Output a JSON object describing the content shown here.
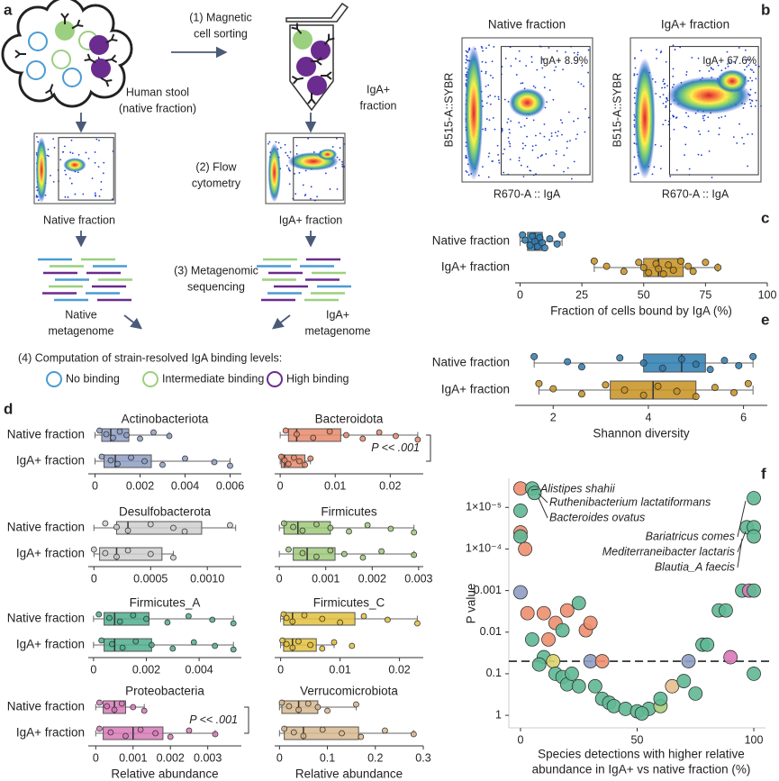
{
  "panel_labels": [
    "a",
    "b",
    "c",
    "d",
    "e",
    "f"
  ],
  "panel_a": {
    "step1": [
      "(1) Magnetic",
      "cell sorting"
    ],
    "stool": [
      "Human stool",
      "(native fraction)"
    ],
    "iga_tube": [
      "IgA+",
      "fraction"
    ],
    "step2": [
      "(2) Flow",
      "cytometry"
    ],
    "native_plot": "Native fraction",
    "iga_plot": "IgA+ fraction",
    "step3": [
      "(3) Metagenomic",
      "sequencing"
    ],
    "native_meta": [
      "Native",
      "metagenome"
    ],
    "iga_meta": [
      "IgA+",
      "metagenome"
    ],
    "step4": "(4) Computation of strain-resolved IgA binding levels:",
    "legend": [
      {
        "label": "No binding",
        "color": "#4a9bd4"
      },
      {
        "label": "Intermediate binding",
        "color": "#9ccf7f"
      },
      {
        "label": "High binding",
        "color": "#6a2c8e"
      }
    ]
  },
  "panel_b": {
    "plots": [
      {
        "title": "Native fraction",
        "gate": "IgA+ 8.9%"
      },
      {
        "title": "IgA+ fraction",
        "gate": "IgA+ 67.6%"
      }
    ],
    "ylabel": "B515-A::SYBR",
    "xlabel": "R670-A :: IgA"
  },
  "chart_data": [
    {
      "type": "box",
      "categories": [
        "Native fraction",
        "IgA+ fraction"
      ],
      "colors": [
        "#2b7bb0",
        "#c8901f"
      ],
      "boxes": [
        [
          0,
          3,
          6,
          9,
          17
        ],
        [
          30,
          50,
          56,
          66,
          80
        ]
      ],
      "points": [
        [
          1,
          2,
          4,
          5,
          6,
          7,
          8,
          9,
          10,
          12,
          15,
          17
        ],
        [
          30,
          35,
          42,
          48,
          50,
          52,
          55,
          56,
          58,
          60,
          62,
          65,
          68,
          70,
          75,
          80
        ]
      ],
      "xlim": [
        -2,
        100
      ],
      "xticks": [
        0,
        25,
        50,
        75,
        100
      ],
      "xlabel": "Fraction of cells bound by IgA (%)"
    },
    {
      "type": "box",
      "categories": [
        "Native fraction",
        "IgA+ fraction"
      ],
      "colors": [
        "#2b7bb0",
        "#c8901f"
      ],
      "boxes": [
        [
          1.6,
          3.9,
          4.7,
          5.2,
          6.2
        ],
        [
          1.7,
          3.2,
          4.1,
          5.0,
          6.2
        ]
      ],
      "points": [
        [
          1.6,
          2.3,
          2.6,
          3.4,
          3.9,
          4.3,
          4.7,
          5.0,
          5.3,
          5.6,
          5.9,
          6.2
        ],
        [
          1.7,
          2.0,
          2.6,
          3.1,
          3.5,
          3.9,
          4.2,
          4.6,
          5.0,
          5.4,
          5.8,
          6.1
        ]
      ],
      "xlim": [
        1.2,
        6.5
      ],
      "xticks": [
        2,
        4,
        6
      ],
      "xlabel": "Shannon diversity"
    },
    {
      "type": "box",
      "title": "Actinobacteriota",
      "categories": [
        "Native fraction",
        "IgA+ fraction"
      ],
      "colors": [
        "#8e9ec4",
        "#8e9ec4"
      ],
      "boxes": [
        [
          0,
          0.0003,
          0.0007,
          0.0015,
          0.0033
        ],
        [
          0,
          0.0004,
          0.0009,
          0.0025,
          0.006
        ]
      ],
      "points": [
        [
          0.0002,
          0.0005,
          0.0008,
          0.0011,
          0.0014,
          0.002,
          0.0026,
          0.0033
        ],
        [
          0.0003,
          0.0007,
          0.001,
          0.0016,
          0.0022,
          0.003,
          0.004,
          0.0053,
          0.006
        ]
      ],
      "xlim": [
        -0.0003,
        0.0065
      ],
      "xticks": [
        0,
        0.002,
        0.004,
        0.006
      ]
    },
    {
      "type": "box",
      "title": "Bacteroidota",
      "colors": [
        "#e8896b",
        "#e8896b"
      ],
      "boxes": [
        [
          0,
          0.0015,
          0.003,
          0.011,
          0.025
        ],
        [
          0,
          0.0002,
          0.0008,
          0.0045,
          0.0055
        ]
      ],
      "points": [
        [
          0.001,
          0.003,
          0.006,
          0.009,
          0.012,
          0.015,
          0.018,
          0.021,
          0.025
        ],
        [
          0.0002,
          0.0008,
          0.0015,
          0.0025,
          0.0035,
          0.0045,
          0.0055
        ]
      ],
      "xlim": [
        -0.001,
        0.026
      ],
      "xticks": [
        0,
        0.01,
        0.02
      ],
      "annotation": "P << .001"
    },
    {
      "type": "box",
      "title": "Desulfobacterota",
      "categories": [
        "Native fraction",
        "IgA+ fraction"
      ],
      "colors": [
        "#cfcfcf",
        "#cfcfcf"
      ],
      "boxes": [
        [
          0,
          0.0002,
          0.0003,
          0.00095,
          0.00125
        ],
        [
          0,
          5e-05,
          0.0002,
          0.0006,
          0.0007
        ]
      ],
      "points": [
        [
          0.0001,
          0.0002,
          0.0003,
          0.0005,
          0.0007,
          0.0008,
          0.0012
        ],
        [
          0,
          0.0001,
          0.0002,
          0.0003,
          0.0005,
          0.0007
        ]
      ],
      "xlim": [
        -5e-05,
        0.0013
      ],
      "xticks": [
        0,
        0.0005,
        {
          "value": 0.001,
          "label": "0.0010"
        }
      ]
    },
    {
      "type": "box",
      "title": "Firmicutes",
      "colors": [
        "#9fc97a",
        "#9fc97a"
      ],
      "boxes": [
        [
          0,
          0.0001,
          0.0004,
          0.0011,
          0.0029
        ],
        [
          0,
          0.0003,
          0.0006,
          0.0012,
          0.0029
        ]
      ],
      "points": [
        [
          0.0001,
          0.0003,
          0.0005,
          0.0008,
          0.0011,
          0.0015,
          0.0019,
          0.0024,
          0.0029
        ],
        [
          0.0002,
          0.0005,
          0.0008,
          0.0011,
          0.0014,
          0.0018,
          0.0022,
          0.0029
        ]
      ],
      "xlim": [
        -0.0001,
        0.0031
      ],
      "xticks": [
        0,
        0.001,
        0.002,
        0.003
      ]
    },
    {
      "type": "box",
      "title": "Firmicutes_A",
      "categories": [
        "Native fraction",
        "IgA+ fraction"
      ],
      "colors": [
        "#4fae8e",
        "#4fae8e"
      ],
      "boxes": [
        [
          0,
          0.0004,
          0.0008,
          0.0021,
          0.0053
        ],
        [
          0,
          0.0004,
          0.0008,
          0.0022,
          0.0053
        ]
      ],
      "points": [
        [
          0.0002,
          0.0006,
          0.001,
          0.0015,
          0.002,
          0.0028,
          0.0036,
          0.0045,
          0.0053
        ],
        [
          0.0003,
          0.0007,
          0.0011,
          0.0016,
          0.0022,
          0.003,
          0.0038,
          0.0046,
          0.0053
        ]
      ],
      "xlim": [
        -0.0002,
        0.0056
      ],
      "xticks": [
        0,
        0.002,
        0.004
      ]
    },
    {
      "type": "box",
      "title": "Firmicutes_C",
      "colors": [
        "#e3c13d",
        "#e3c13d"
      ],
      "boxes": [
        [
          0,
          0.0005,
          0.002,
          0.0125,
          0.023
        ],
        [
          0,
          0.0005,
          0.002,
          0.006,
          0.009
        ]
      ],
      "points": [
        [
          0.0005,
          0.001,
          0.002,
          0.004,
          0.007,
          0.01,
          0.014,
          0.018,
          0.023
        ],
        [
          0.0003,
          0.001,
          0.002,
          0.003,
          0.005,
          0.007,
          0.009,
          0.012
        ]
      ],
      "xlim": [
        -0.001,
        0.024
      ],
      "xticks": [
        0,
        0.01,
        0.02
      ]
    },
    {
      "type": "box",
      "title": "Proteobacteria",
      "categories": [
        "Native fraction",
        "IgA+ fraction"
      ],
      "colors": [
        "#d87ab8",
        "#d87ab8"
      ],
      "boxes": [
        [
          0,
          0.0002,
          0.0005,
          0.0008,
          0.0013
        ],
        [
          0,
          0.0002,
          0.001,
          0.0018,
          0.0032
        ]
      ],
      "points": [
        [
          0.0001,
          0.0003,
          0.0005,
          0.0007,
          0.001,
          0.0013
        ],
        [
          0.0001,
          0.0004,
          0.0008,
          0.0012,
          0.0016,
          0.002,
          0.0025,
          0.0032
        ]
      ],
      "xlim": [
        -0.0002,
        0.0039
      ],
      "xticks": [
        0,
        0.001,
        0.002,
        0.003
      ],
      "annotation": "P << .001",
      "xlabel": "Relative abundance"
    },
    {
      "type": "box",
      "title": "Verrucomicrobiota",
      "colors": [
        "#d8b98f",
        "#d8b98f"
      ],
      "boxes": [
        [
          0,
          0.005,
          0.04,
          0.08,
          0.16
        ],
        [
          0,
          0.01,
          0.05,
          0.165,
          0.28
        ]
      ],
      "points": [
        [
          0.005,
          0.02,
          0.04,
          0.06,
          0.08,
          0.1,
          0.16
        ],
        [
          0.01,
          0.03,
          0.05,
          0.09,
          0.13,
          0.17,
          0.22,
          0.28
        ]
      ],
      "xlim": [
        -0.01,
        0.3
      ],
      "xticks": [
        0,
        0.1,
        0.2,
        0.3
      ],
      "xlabel": "Relative abundance"
    },
    {
      "type": "scatter",
      "x": [
        0,
        5,
        6,
        0,
        0,
        0,
        2,
        0,
        3,
        10,
        5,
        12,
        15,
        20,
        18,
        25,
        28,
        30,
        10,
        14,
        8,
        15,
        18,
        20,
        22,
        25,
        30,
        35,
        32,
        35,
        38,
        40,
        45,
        50,
        55,
        52,
        60,
        60,
        65,
        70,
        72,
        75,
        78,
        80,
        85,
        88,
        90,
        95,
        98,
        100,
        100,
        100,
        97,
        100,
        100
      ],
      "y": [
        3.5e-06,
        3.5e-06,
        4.5e-06,
        1.2e-05,
        4e-05,
        5e-05,
        0.0001,
        0.0011,
        0.0035,
        0.0035,
        0.015,
        0.015,
        0.006,
        0.003,
        0.009,
        0.002,
        0.009,
        0.006,
        0.04,
        0.05,
        0.06,
        0.1,
        0.12,
        0.18,
        0.1,
        0.2,
        0.05,
        0.05,
        0.2,
        0.4,
        0.5,
        0.6,
        0.7,
        0.8,
        0.7,
        0.9,
        0.6,
        0.4,
        0.2,
        0.15,
        0.05,
        0.3,
        0.02,
        0.02,
        0.003,
        0.003,
        0.04,
        0.001,
        0.001,
        0.1,
        0.001,
        6e-06,
        3e-05,
        3e-05,
        5e-05
      ],
      "colors": [
        "#ee8f6f",
        "#5fb894",
        "#5fb894",
        "#5fb894",
        "#ee8f6f",
        "#5fb894",
        "#ee8f6f",
        "#8e9ec4",
        "#ee8f6f",
        "#ee8f6f",
        "#5fb894",
        "#ee8f6f",
        "#ee8f6f",
        "#ee8f6f",
        "#5fb894",
        "#5fb894",
        "#ee8f6f",
        "#ee8f6f",
        "#5fb894",
        "#d9d36a",
        "#5fb894",
        "#5fb894",
        "#5fb894",
        "#5fb894",
        "#5fb894",
        "#5fb894",
        "#8e9ec4",
        "#ee8f6f",
        "#5fb894",
        "#5fb894",
        "#5fb894",
        "#5fb894",
        "#5fb894",
        "#5fb894",
        "#5fb894",
        "#5fb894",
        "#a7cf7a",
        "#5fb894",
        "#e6c08f",
        "#5fb894",
        "#8e9ec4",
        "#5fb894",
        "#5fb894",
        "#5fb894",
        "#5fb894",
        "#5fb894",
        "#d87ab8",
        "#5fb894",
        "#d87ab8",
        "#5fb894",
        "#5fb894",
        "#5fb894",
        "#5fb894",
        "#5fb894",
        "#5fb894"
      ],
      "xlim": [
        -5,
        105
      ],
      "xticks": [
        0,
        50,
        100
      ],
      "ylim": [
        2e-06,
        2
      ],
      "log_y": true,
      "y_inverted": true,
      "yticks": [
        {
          "value": 1e-05,
          "label": "1×10⁻⁵"
        },
        {
          "value": 0.0001,
          "label": "1×10⁻⁴"
        },
        0.001,
        0.01,
        0.1,
        1
      ],
      "ylabel": "P value",
      "xlabel": [
        "Species detections with higher relative",
        "abundance in IgA+ vs native fraction (%)"
      ],
      "threshold": 0.05,
      "annotations": [
        "Alistipes shahii",
        "Ruthenibacterium lactatiformans",
        "Bacteroides ovatus",
        "Bariatricus comes",
        "Mediterraneibacter lactaris",
        "Blautia_A faecis"
      ]
    }
  ]
}
